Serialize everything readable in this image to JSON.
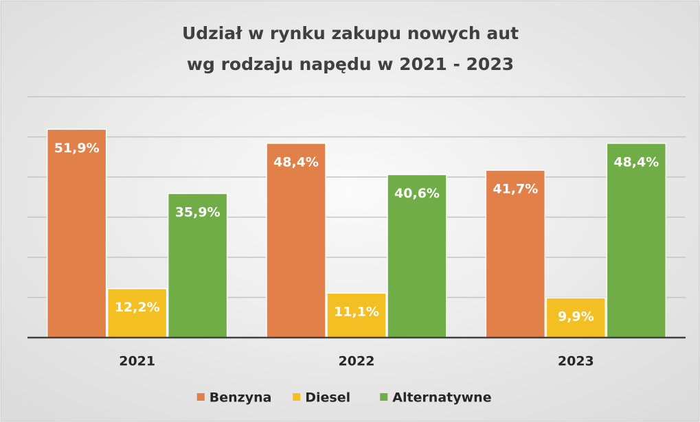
{
  "chart_data": {
    "type": "bar",
    "title": [
      "Udział w rynku zakupu nowych aut",
      "wg rodzaju napędu w 2021  - 2023"
    ],
    "categories": [
      "2021",
      "2022",
      "2023"
    ],
    "series": [
      {
        "name": "Benzyna",
        "color": "#e2804a",
        "values": [
          51.9,
          48.4,
          41.7
        ],
        "value_labels": [
          "51,9%",
          "48,4%",
          "41,7%"
        ]
      },
      {
        "name": "Diesel",
        "color": "#f4bf22",
        "values": [
          12.2,
          11.1,
          9.9
        ],
        "value_labels": [
          "12,2%",
          "11,1%",
          "9,9%"
        ]
      },
      {
        "name": "Alternatywne",
        "color": "#70ad47",
        "values": [
          35.9,
          40.6,
          48.4
        ],
        "value_labels": [
          "35,9%",
          "40,6%",
          "48,4%"
        ]
      }
    ],
    "ylim": [
      0,
      60
    ],
    "yticks": [
      0,
      10,
      20,
      30,
      40,
      50,
      60
    ],
    "grid": true,
    "legend": "bottom"
  }
}
